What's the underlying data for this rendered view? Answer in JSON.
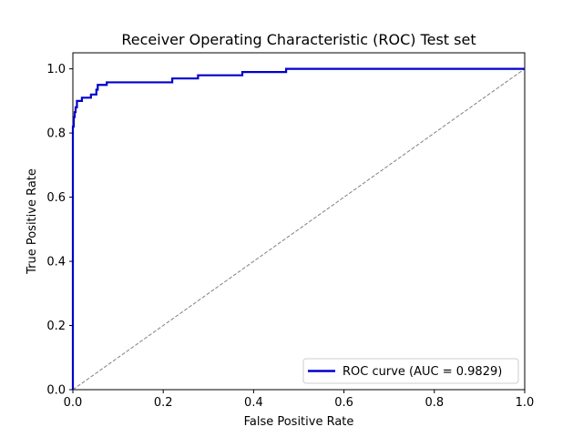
{
  "chart_data": {
    "type": "line",
    "title": "Receiver Operating Characteristic (ROC) Test set",
    "xlabel": "False Positive Rate",
    "ylabel": "True Positive Rate",
    "xlim": [
      0.0,
      1.0
    ],
    "ylim": [
      0.0,
      1.05
    ],
    "xticks": [
      0.0,
      0.2,
      0.4,
      0.6,
      0.8,
      1.0
    ],
    "yticks": [
      0.0,
      0.2,
      0.4,
      0.6,
      0.8,
      1.0
    ],
    "xtick_labels": [
      "0.0",
      "0.2",
      "0.4",
      "0.6",
      "0.8",
      "1.0"
    ],
    "ytick_labels": [
      "0.0",
      "0.2",
      "0.4",
      "0.6",
      "0.8",
      "1.0"
    ],
    "grid": false,
    "legend_position": "lower-right",
    "series": [
      {
        "name": "ROC curve (AUC = 0.9829)",
        "color": "#0000cc",
        "style": "solid",
        "x": [
          0.0,
          0.0,
          0.002,
          0.002,
          0.004,
          0.004,
          0.006,
          0.006,
          0.009,
          0.009,
          0.02,
          0.02,
          0.04,
          0.04,
          0.052,
          0.052,
          0.055,
          0.055,
          0.075,
          0.075,
          0.22,
          0.22,
          0.277,
          0.277,
          0.375,
          0.375,
          0.472,
          0.472,
          1.0
        ],
        "y": [
          0.0,
          0.82,
          0.82,
          0.85,
          0.85,
          0.865,
          0.865,
          0.88,
          0.88,
          0.9,
          0.9,
          0.91,
          0.91,
          0.92,
          0.92,
          0.935,
          0.935,
          0.95,
          0.95,
          0.958,
          0.958,
          0.97,
          0.97,
          0.98,
          0.98,
          0.99,
          0.99,
          1.0,
          1.0
        ]
      }
    ],
    "reference_line": {
      "x": [
        0.0,
        1.0
      ],
      "y": [
        0.0,
        1.0
      ],
      "color": "#808080",
      "style": "dashed"
    }
  }
}
